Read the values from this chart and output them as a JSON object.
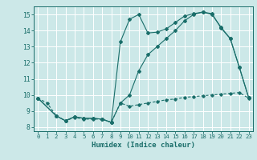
{
  "title": "",
  "xlabel": "Humidex (Indice chaleur)",
  "bg_color": "#cce8e8",
  "grid_color": "#ffffff",
  "line_color": "#1a6e6a",
  "xlim": [
    -0.5,
    23.5
  ],
  "ylim": [
    7.75,
    15.5
  ],
  "xticks": [
    0,
    1,
    2,
    3,
    4,
    5,
    6,
    7,
    8,
    9,
    10,
    11,
    12,
    13,
    14,
    15,
    16,
    17,
    18,
    19,
    20,
    21,
    22,
    23
  ],
  "yticks": [
    8,
    9,
    10,
    11,
    12,
    13,
    14,
    15
  ],
  "line1_x": [
    0,
    1,
    2,
    3,
    4,
    5,
    6,
    7,
    8,
    9,
    10,
    11,
    12,
    13,
    14,
    15,
    16,
    17,
    18,
    19,
    20,
    21,
    22,
    23
  ],
  "line1_y": [
    9.8,
    9.5,
    8.7,
    8.4,
    8.6,
    8.5,
    8.5,
    8.5,
    8.3,
    9.5,
    9.3,
    9.4,
    9.5,
    9.6,
    9.7,
    9.75,
    9.85,
    9.9,
    9.95,
    10.0,
    10.05,
    10.1,
    10.15,
    9.8
  ],
  "line2_x": [
    0,
    2,
    3,
    4,
    5,
    6,
    7,
    8,
    9,
    10,
    11,
    12,
    13,
    14,
    15,
    16,
    17,
    18,
    19,
    20,
    21,
    22,
    23
  ],
  "line2_y": [
    9.8,
    8.7,
    8.4,
    8.65,
    8.55,
    8.55,
    8.5,
    8.3,
    13.3,
    14.7,
    15.0,
    13.85,
    13.9,
    14.1,
    14.5,
    14.9,
    15.05,
    15.15,
    15.0,
    14.2,
    13.5,
    11.7,
    9.85
  ],
  "line3_x": [
    0,
    2,
    3,
    4,
    5,
    6,
    7,
    8,
    9,
    10,
    11,
    12,
    13,
    14,
    15,
    16,
    17,
    18,
    19,
    20,
    21,
    22,
    23
  ],
  "line3_y": [
    9.8,
    8.7,
    8.4,
    8.65,
    8.55,
    8.55,
    8.5,
    8.3,
    9.5,
    10.0,
    11.5,
    12.5,
    13.0,
    13.5,
    14.0,
    14.6,
    15.0,
    15.15,
    15.05,
    14.15,
    13.5,
    11.7,
    9.85
  ]
}
